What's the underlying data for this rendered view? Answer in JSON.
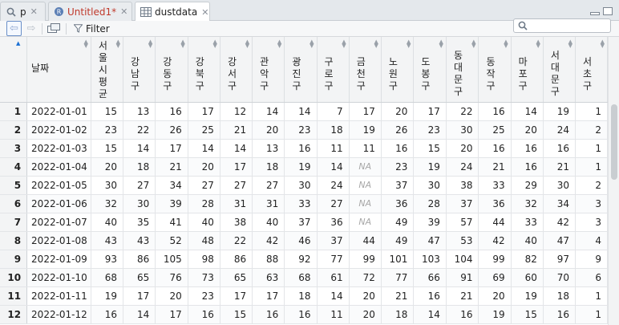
{
  "tabs": [
    {
      "label": "p",
      "icon": "search-icon",
      "active": false
    },
    {
      "label": "Untitled1*",
      "icon": "r-script-icon",
      "active": false
    },
    {
      "label": "dustdata",
      "icon": "table-icon",
      "active": true
    }
  ],
  "toolbar": {
    "filter_label": "Filter",
    "search_value": "",
    "search_placeholder": ""
  },
  "grid": {
    "date_header": "날짜",
    "column_headers": [
      "서울시평균",
      "강남구",
      "강동구",
      "강북구",
      "강서구",
      "관악구",
      "광진구",
      "구로구",
      "금천구",
      "노원구",
      "도봉구",
      "동대문구",
      "동작구",
      "마포구",
      "서대문구",
      "서초구"
    ],
    "row_numbers": [
      "1",
      "2",
      "3",
      "4",
      "5",
      "6",
      "7",
      "8",
      "9",
      "10",
      "11",
      "12"
    ],
    "dates": [
      "2022-01-01",
      "2022-01-02",
      "2022-01-03",
      "2022-01-04",
      "2022-01-05",
      "2022-01-06",
      "2022-01-07",
      "2022-01-08",
      "2022-01-09",
      "2022-01-10",
      "2022-01-11",
      "2022-01-12"
    ],
    "rows": [
      [
        "15",
        "13",
        "16",
        "17",
        "12",
        "14",
        "14",
        "7",
        "17",
        "20",
        "17",
        "22",
        "16",
        "14",
        "19",
        "1"
      ],
      [
        "23",
        "22",
        "26",
        "25",
        "21",
        "20",
        "23",
        "18",
        "19",
        "26",
        "23",
        "30",
        "25",
        "20",
        "24",
        "2"
      ],
      [
        "15",
        "14",
        "17",
        "14",
        "14",
        "13",
        "16",
        "11",
        "11",
        "16",
        "15",
        "20",
        "16",
        "16",
        "16",
        "1"
      ],
      [
        "20",
        "18",
        "21",
        "20",
        "17",
        "18",
        "19",
        "14",
        "NA",
        "23",
        "19",
        "24",
        "21",
        "16",
        "21",
        "1"
      ],
      [
        "30",
        "27",
        "34",
        "27",
        "27",
        "27",
        "30",
        "24",
        "NA",
        "37",
        "30",
        "38",
        "33",
        "29",
        "30",
        "2"
      ],
      [
        "32",
        "30",
        "39",
        "28",
        "31",
        "31",
        "33",
        "27",
        "NA",
        "36",
        "28",
        "37",
        "36",
        "32",
        "34",
        "3"
      ],
      [
        "40",
        "35",
        "41",
        "40",
        "38",
        "40",
        "37",
        "36",
        "NA",
        "49",
        "39",
        "57",
        "44",
        "33",
        "42",
        "3"
      ],
      [
        "43",
        "43",
        "52",
        "48",
        "22",
        "42",
        "46",
        "37",
        "44",
        "49",
        "47",
        "53",
        "42",
        "40",
        "47",
        "4"
      ],
      [
        "93",
        "86",
        "105",
        "98",
        "86",
        "88",
        "92",
        "77",
        "99",
        "101",
        "103",
        "104",
        "99",
        "82",
        "97",
        "9"
      ],
      [
        "68",
        "65",
        "76",
        "73",
        "65",
        "63",
        "68",
        "61",
        "72",
        "77",
        "66",
        "91",
        "69",
        "60",
        "70",
        "6"
      ],
      [
        "19",
        "17",
        "20",
        "23",
        "17",
        "17",
        "18",
        "14",
        "20",
        "21",
        "16",
        "21",
        "20",
        "19",
        "18",
        "1"
      ],
      [
        "16",
        "14",
        "17",
        "16",
        "15",
        "16",
        "16",
        "11",
        "20",
        "18",
        "14",
        "16",
        "19",
        "15",
        "16",
        "1"
      ]
    ]
  }
}
